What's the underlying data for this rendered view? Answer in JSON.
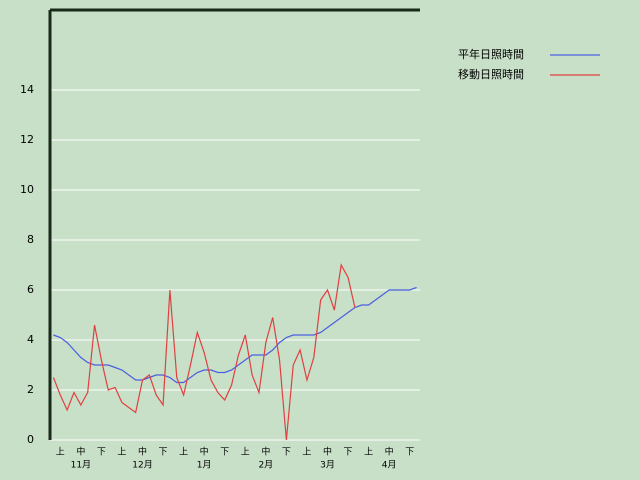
{
  "chart_data": {
    "type": "line",
    "categories": [
      null,
      "上",
      null,
      null,
      "中",
      null,
      null,
      "下",
      null,
      null,
      "上",
      null,
      null,
      "中",
      null,
      null,
      "下",
      null,
      null,
      "上",
      null,
      null,
      "中",
      null,
      null,
      "下",
      null,
      null,
      "上",
      null,
      null,
      "中",
      null,
      null,
      "下",
      null,
      null,
      "上",
      null,
      null,
      "中",
      null,
      null,
      "下",
      null,
      null,
      "上",
      null,
      null,
      "中",
      null,
      null,
      "下",
      null
    ],
    "months": [
      "11月",
      "12月",
      "1月",
      "2月",
      "3月",
      "4月"
    ],
    "series": [
      {
        "name": "平年日照時間",
        "color": "#4a5fe0",
        "values": [
          4.2,
          4.1,
          3.9,
          3.6,
          3.3,
          3.1,
          3.0,
          3.0,
          3.0,
          2.9,
          2.8,
          2.6,
          2.4,
          2.4,
          2.5,
          2.6,
          2.6,
          2.5,
          2.3,
          2.3,
          2.5,
          2.7,
          2.8,
          2.8,
          2.7,
          2.7,
          2.8,
          3.0,
          3.2,
          3.4,
          3.4,
          3.4,
          3.6,
          3.9,
          4.1,
          4.2,
          4.2,
          4.2,
          4.2,
          4.3,
          4.5,
          4.7,
          4.9,
          5.1,
          5.3,
          5.4,
          5.4,
          5.6,
          5.8,
          6.0,
          6.0,
          6.0,
          6.0,
          6.1
        ]
      },
      {
        "name": "移動日照時間",
        "color": "#e04040",
        "values": [
          2.5,
          1.8,
          1.2,
          1.9,
          1.4,
          1.9,
          4.6,
          3.2,
          2.0,
          2.1,
          1.5,
          1.3,
          1.1,
          2.4,
          2.6,
          1.8,
          1.4,
          6.0,
          2.5,
          1.8,
          3.0,
          4.3,
          3.5,
          2.4,
          1.9,
          1.6,
          2.2,
          3.4,
          4.2,
          2.6,
          1.9,
          3.9,
          4.9,
          3.2,
          0.0,
          3.0,
          3.6,
          2.4,
          3.3,
          5.6,
          6.0,
          5.2,
          7.0,
          6.5,
          5.3,
          null,
          null,
          null,
          null,
          null,
          null,
          null,
          null,
          null
        ]
      }
    ],
    "ylim": [
      0,
      17.2
    ],
    "yticks": [
      0,
      2,
      4,
      6,
      8,
      10,
      12,
      14
    ],
    "grid": true,
    "legend": "right"
  }
}
